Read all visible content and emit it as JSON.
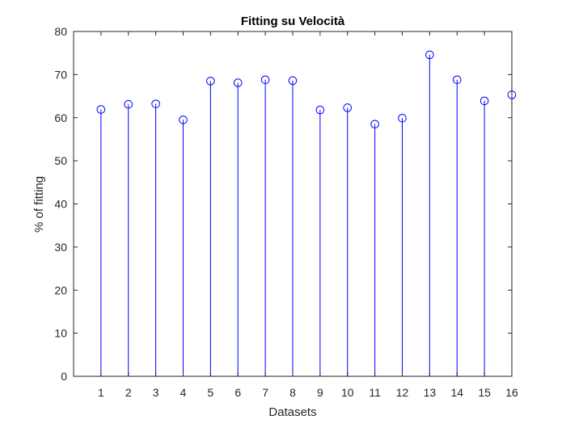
{
  "chart_data": {
    "type": "stem",
    "title": "Fitting su Velocità",
    "xlabel": "Datasets",
    "ylabel": "% of fitting",
    "x": [
      1,
      2,
      3,
      4,
      5,
      6,
      7,
      8,
      9,
      10,
      11,
      12,
      13,
      14,
      15,
      16
    ],
    "values": [
      61.9,
      63.1,
      63.2,
      59.5,
      68.5,
      68.1,
      68.8,
      68.6,
      61.8,
      62.3,
      58.5,
      59.9,
      74.6,
      68.8,
      63.9,
      65.3
    ],
    "xlim": [
      0,
      16
    ],
    "ylim": [
      0,
      80
    ],
    "xticks": [
      "1",
      "2",
      "3",
      "4",
      "5",
      "6",
      "7",
      "8",
      "9",
      "10",
      "11",
      "12",
      "13",
      "14",
      "15",
      "16"
    ],
    "yticks": [
      "0",
      "10",
      "20",
      "30",
      "40",
      "50",
      "60",
      "70",
      "80"
    ],
    "grid": false,
    "marker": "circle",
    "series_color": "#0000ff",
    "axis_color": "#262626"
  }
}
